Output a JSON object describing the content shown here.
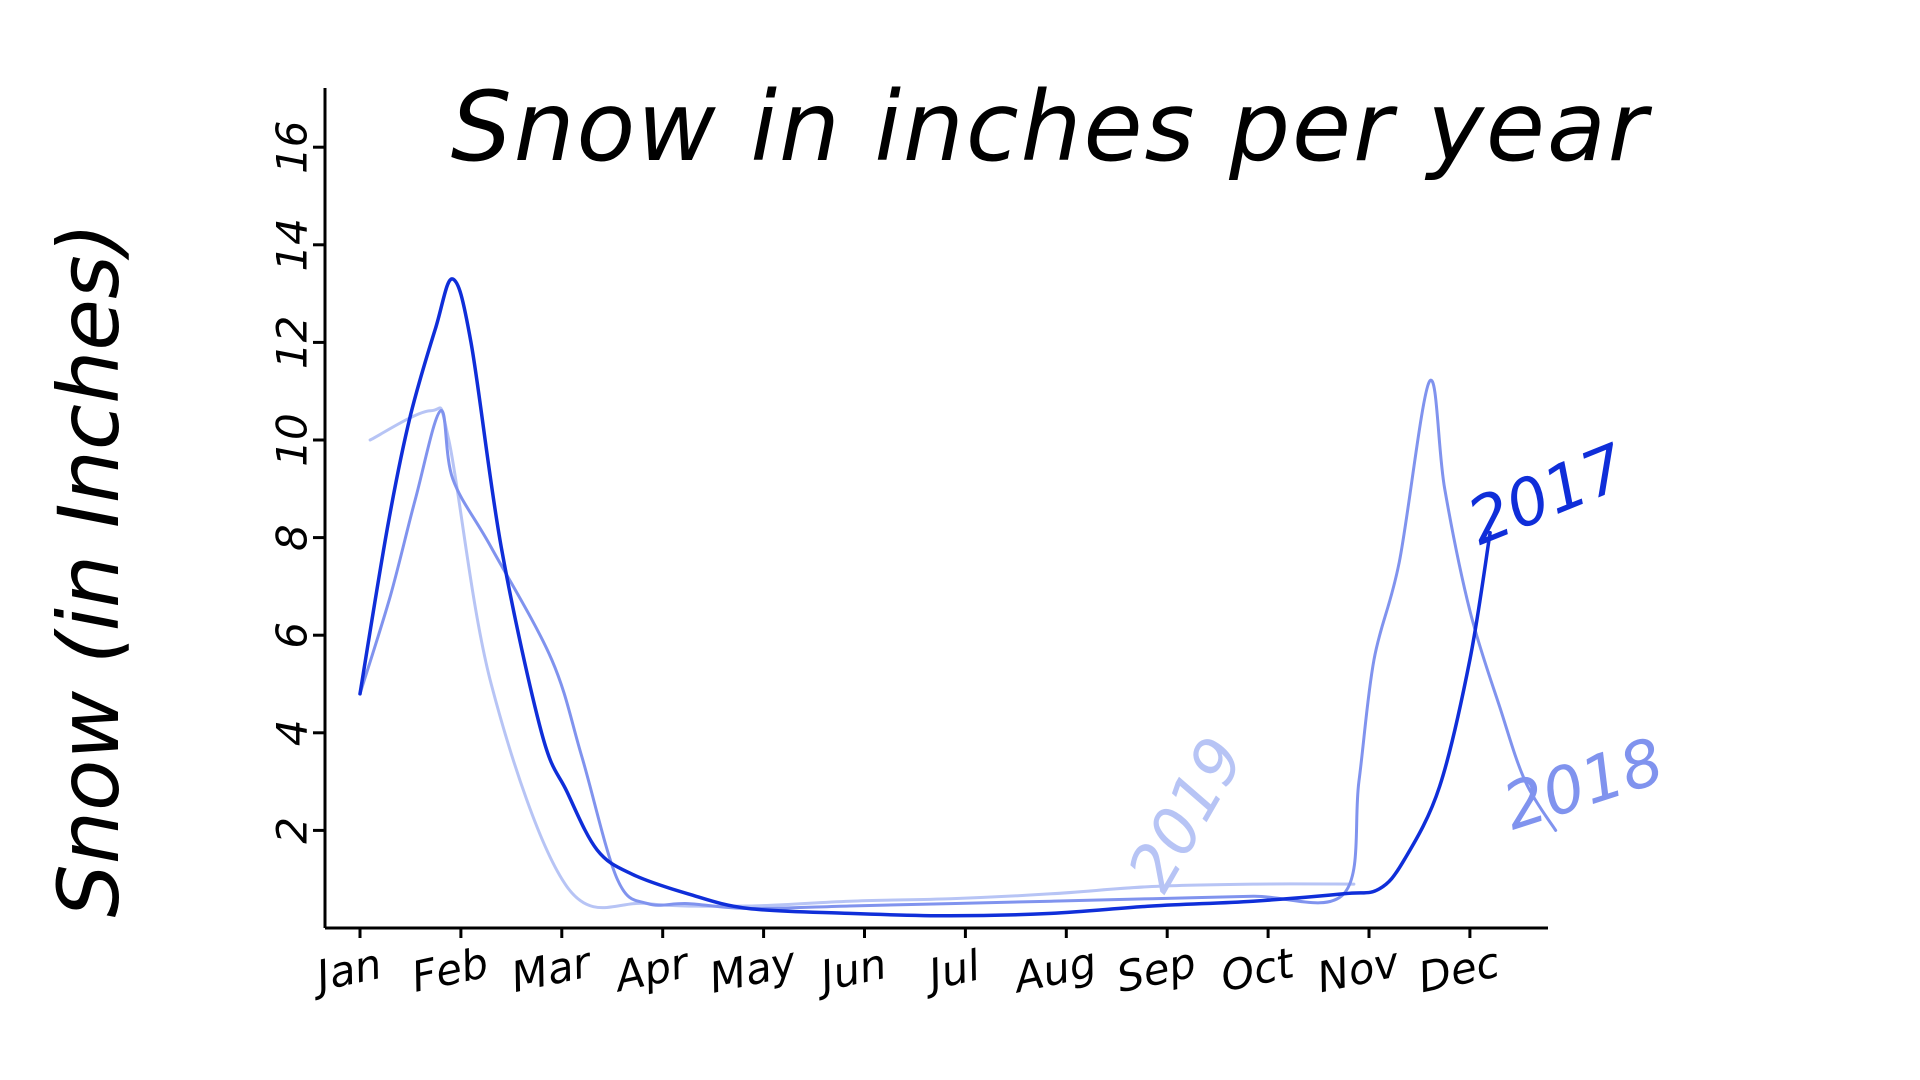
{
  "chart_data": {
    "type": "line",
    "title": "Snow in inches per year",
    "xlabel": "",
    "ylabel": "Snow (in Inches)",
    "categories": [
      "Jan",
      "Feb",
      "Mar",
      "Apr",
      "May",
      "Jun",
      "Jul",
      "Aug",
      "Sep",
      "Oct",
      "Nov",
      "Dec"
    ],
    "yticks": [
      2,
      4,
      6,
      8,
      10,
      12,
      14,
      16
    ],
    "ylim": [
      0,
      17.2
    ],
    "grid": false,
    "legend": "none",
    "series": [
      {
        "name": "2019",
        "color": "#b7c4f5",
        "x": [
          0.1,
          0.7,
          0.88,
          1.3,
          2.05,
          2.85,
          3.85,
          4.85,
          5.85,
          6.85,
          7.85,
          8.85,
          9.85
        ],
        "values": [
          10.0,
          10.6,
          10.0,
          5.0,
          0.85,
          0.5,
          0.45,
          0.55,
          0.6,
          0.7,
          0.85,
          0.9,
          0.9
        ]
      },
      {
        "name": "2018",
        "color": "#8093ee",
        "x": [
          0.0,
          0.3,
          0.55,
          0.8,
          0.92,
          1.3,
          1.9,
          2.2,
          2.55,
          2.85,
          3.25,
          3.85,
          4.85,
          5.85,
          6.85,
          7.85,
          8.85,
          9.75,
          9.9,
          10.05,
          10.3,
          10.6,
          10.75,
          11.0,
          11.3,
          11.55,
          11.85
        ],
        "values": [
          4.8,
          6.8,
          8.8,
          10.6,
          9.2,
          7.8,
          5.5,
          3.5,
          1.0,
          0.5,
          0.5,
          0.4,
          0.45,
          0.5,
          0.55,
          0.6,
          0.65,
          0.7,
          3.0,
          5.5,
          7.5,
          11.2,
          9.0,
          6.5,
          4.5,
          3.0,
          2.0
        ]
      },
      {
        "name": "2017",
        "color": "#0f2ed9",
        "x": [
          0.0,
          0.28,
          0.5,
          0.75,
          0.92,
          1.1,
          1.4,
          1.8,
          2.05,
          2.35,
          2.7,
          3.25,
          3.85,
          4.85,
          5.85,
          6.85,
          7.85,
          8.85,
          9.75,
          10.1,
          10.35,
          10.7,
          11.0,
          11.2
        ],
        "values": [
          4.8,
          8.3,
          10.5,
          12.3,
          13.3,
          12.0,
          7.8,
          4.0,
          2.8,
          1.6,
          1.1,
          0.7,
          0.4,
          0.3,
          0.25,
          0.3,
          0.45,
          0.55,
          0.7,
          0.8,
          1.4,
          2.9,
          5.5,
          8.1
        ]
      }
    ]
  }
}
